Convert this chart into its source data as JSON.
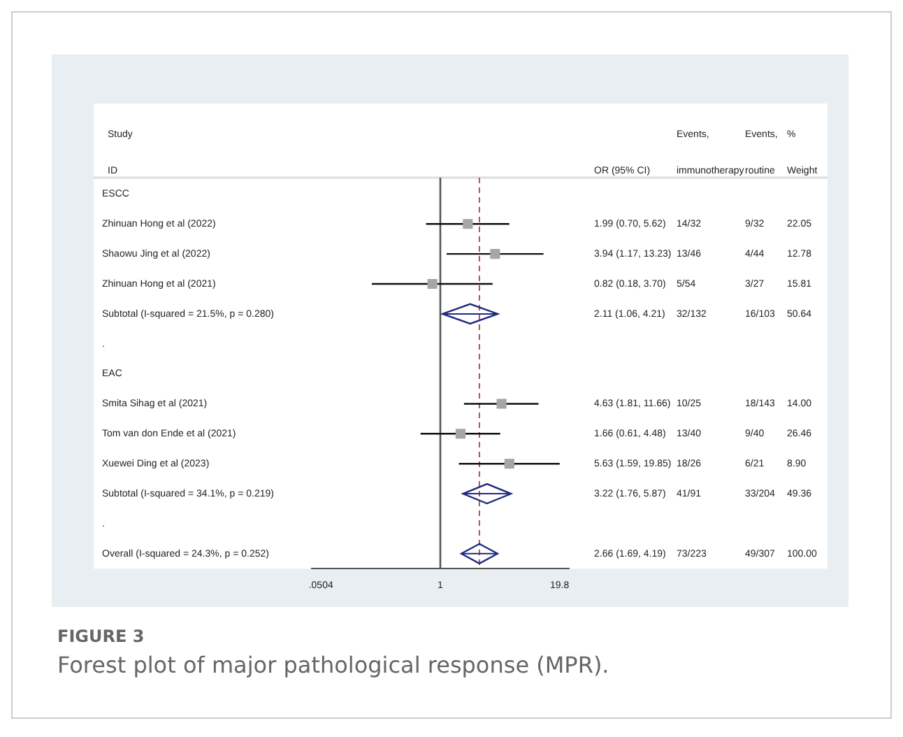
{
  "chart_data": {
    "type": "scatter",
    "orientation": "horizontal",
    "title": "FIGURE 3",
    "subtitle": "Forest plot of major pathological response (MPR).",
    "categories": [
      "ESCC",
      "Zhinuan Hong et al (2022)",
      "Shaowu Jing et al (2022)",
      "Zhinuan Hong et al (2021)",
      "Subtotal (I-squared = 21.5%, p = 0.280)",
      ".",
      "EAC",
      "Smita Sihag et al (2021)",
      "Tom van don Ende et al (2021)",
      "Xuewei Ding et al (2023)",
      "Subtotal (I-squared = 34.1%, p = 0.219)",
      ".",
      "Overall (I-squared = 24.3%, p = 0.252)"
    ],
    "series": [
      {
        "marker": "square",
        "color": "#a6a6a6",
        "values": [
          null,
          1.99,
          3.94,
          0.82,
          null,
          null,
          null,
          4.63,
          1.66,
          5.63,
          null,
          null,
          null
        ],
        "errors": [
          null,
          [
            0.7,
            5.62
          ],
          [
            1.17,
            13.23
          ],
          [
            0.18,
            3.7
          ],
          null,
          null,
          null,
          [
            1.81,
            11.66
          ],
          [
            0.61,
            4.48
          ],
          [
            1.59,
            19.85
          ],
          null,
          null,
          null
        ]
      },
      {
        "marker": "diamond",
        "color": "#1f2a80",
        "values": [
          null,
          null,
          null,
          null,
          2.11,
          null,
          null,
          null,
          null,
          null,
          3.22,
          null,
          2.66
        ],
        "errors": [
          null,
          null,
          null,
          null,
          [
            1.06,
            4.21
          ],
          null,
          null,
          null,
          null,
          null,
          [
            1.76,
            5.87
          ],
          null,
          [
            1.69,
            4.19
          ]
        ]
      }
    ],
    "xlim": [
      0.04,
      25
    ],
    "xticks": [
      {
        "value": 0.0504,
        "label": ".0504"
      },
      1,
      19.8
    ],
    "log": "x",
    "grid": false,
    "legend": false,
    "ref_lines": [
      {
        "axis": "x",
        "value": 1,
        "color": "#555555",
        "line_style": "solid"
      },
      {
        "axis": "x",
        "value": 2.66,
        "color": "#b5525c",
        "line_style": "dashed"
      }
    ],
    "annotations": [
      "Study",
      "ID",
      "OR (95% CI)",
      "Events,",
      "immunotherapy",
      "Events,",
      "routine",
      "%",
      "Weight",
      "1.99 (0.70, 5.62)",
      "14/32",
      "9/32",
      "22.05",
      "3.94 (1.17, 13.23)",
      "13/46",
      "4/44",
      "12.78",
      "0.82 (0.18, 3.70)",
      "5/54",
      "3/27",
      "15.81",
      "2.11 (1.06, 4.21)",
      "32/132",
      "16/103",
      "50.64",
      "4.63 (1.81, 11.66)",
      "10/25",
      "18/143",
      "14.00",
      "1.66 (0.61, 4.48)",
      "13/40",
      "9/40",
      "26.46",
      "5.63 (1.59, 19.85)",
      "18/26",
      "6/21",
      "8.90",
      "3.22 (1.76, 5.87)",
      "41/91",
      "33/204",
      "49.36",
      "2.66 (1.69, 4.19)",
      "73/223",
      "49/307",
      "100.00"
    ]
  }
}
